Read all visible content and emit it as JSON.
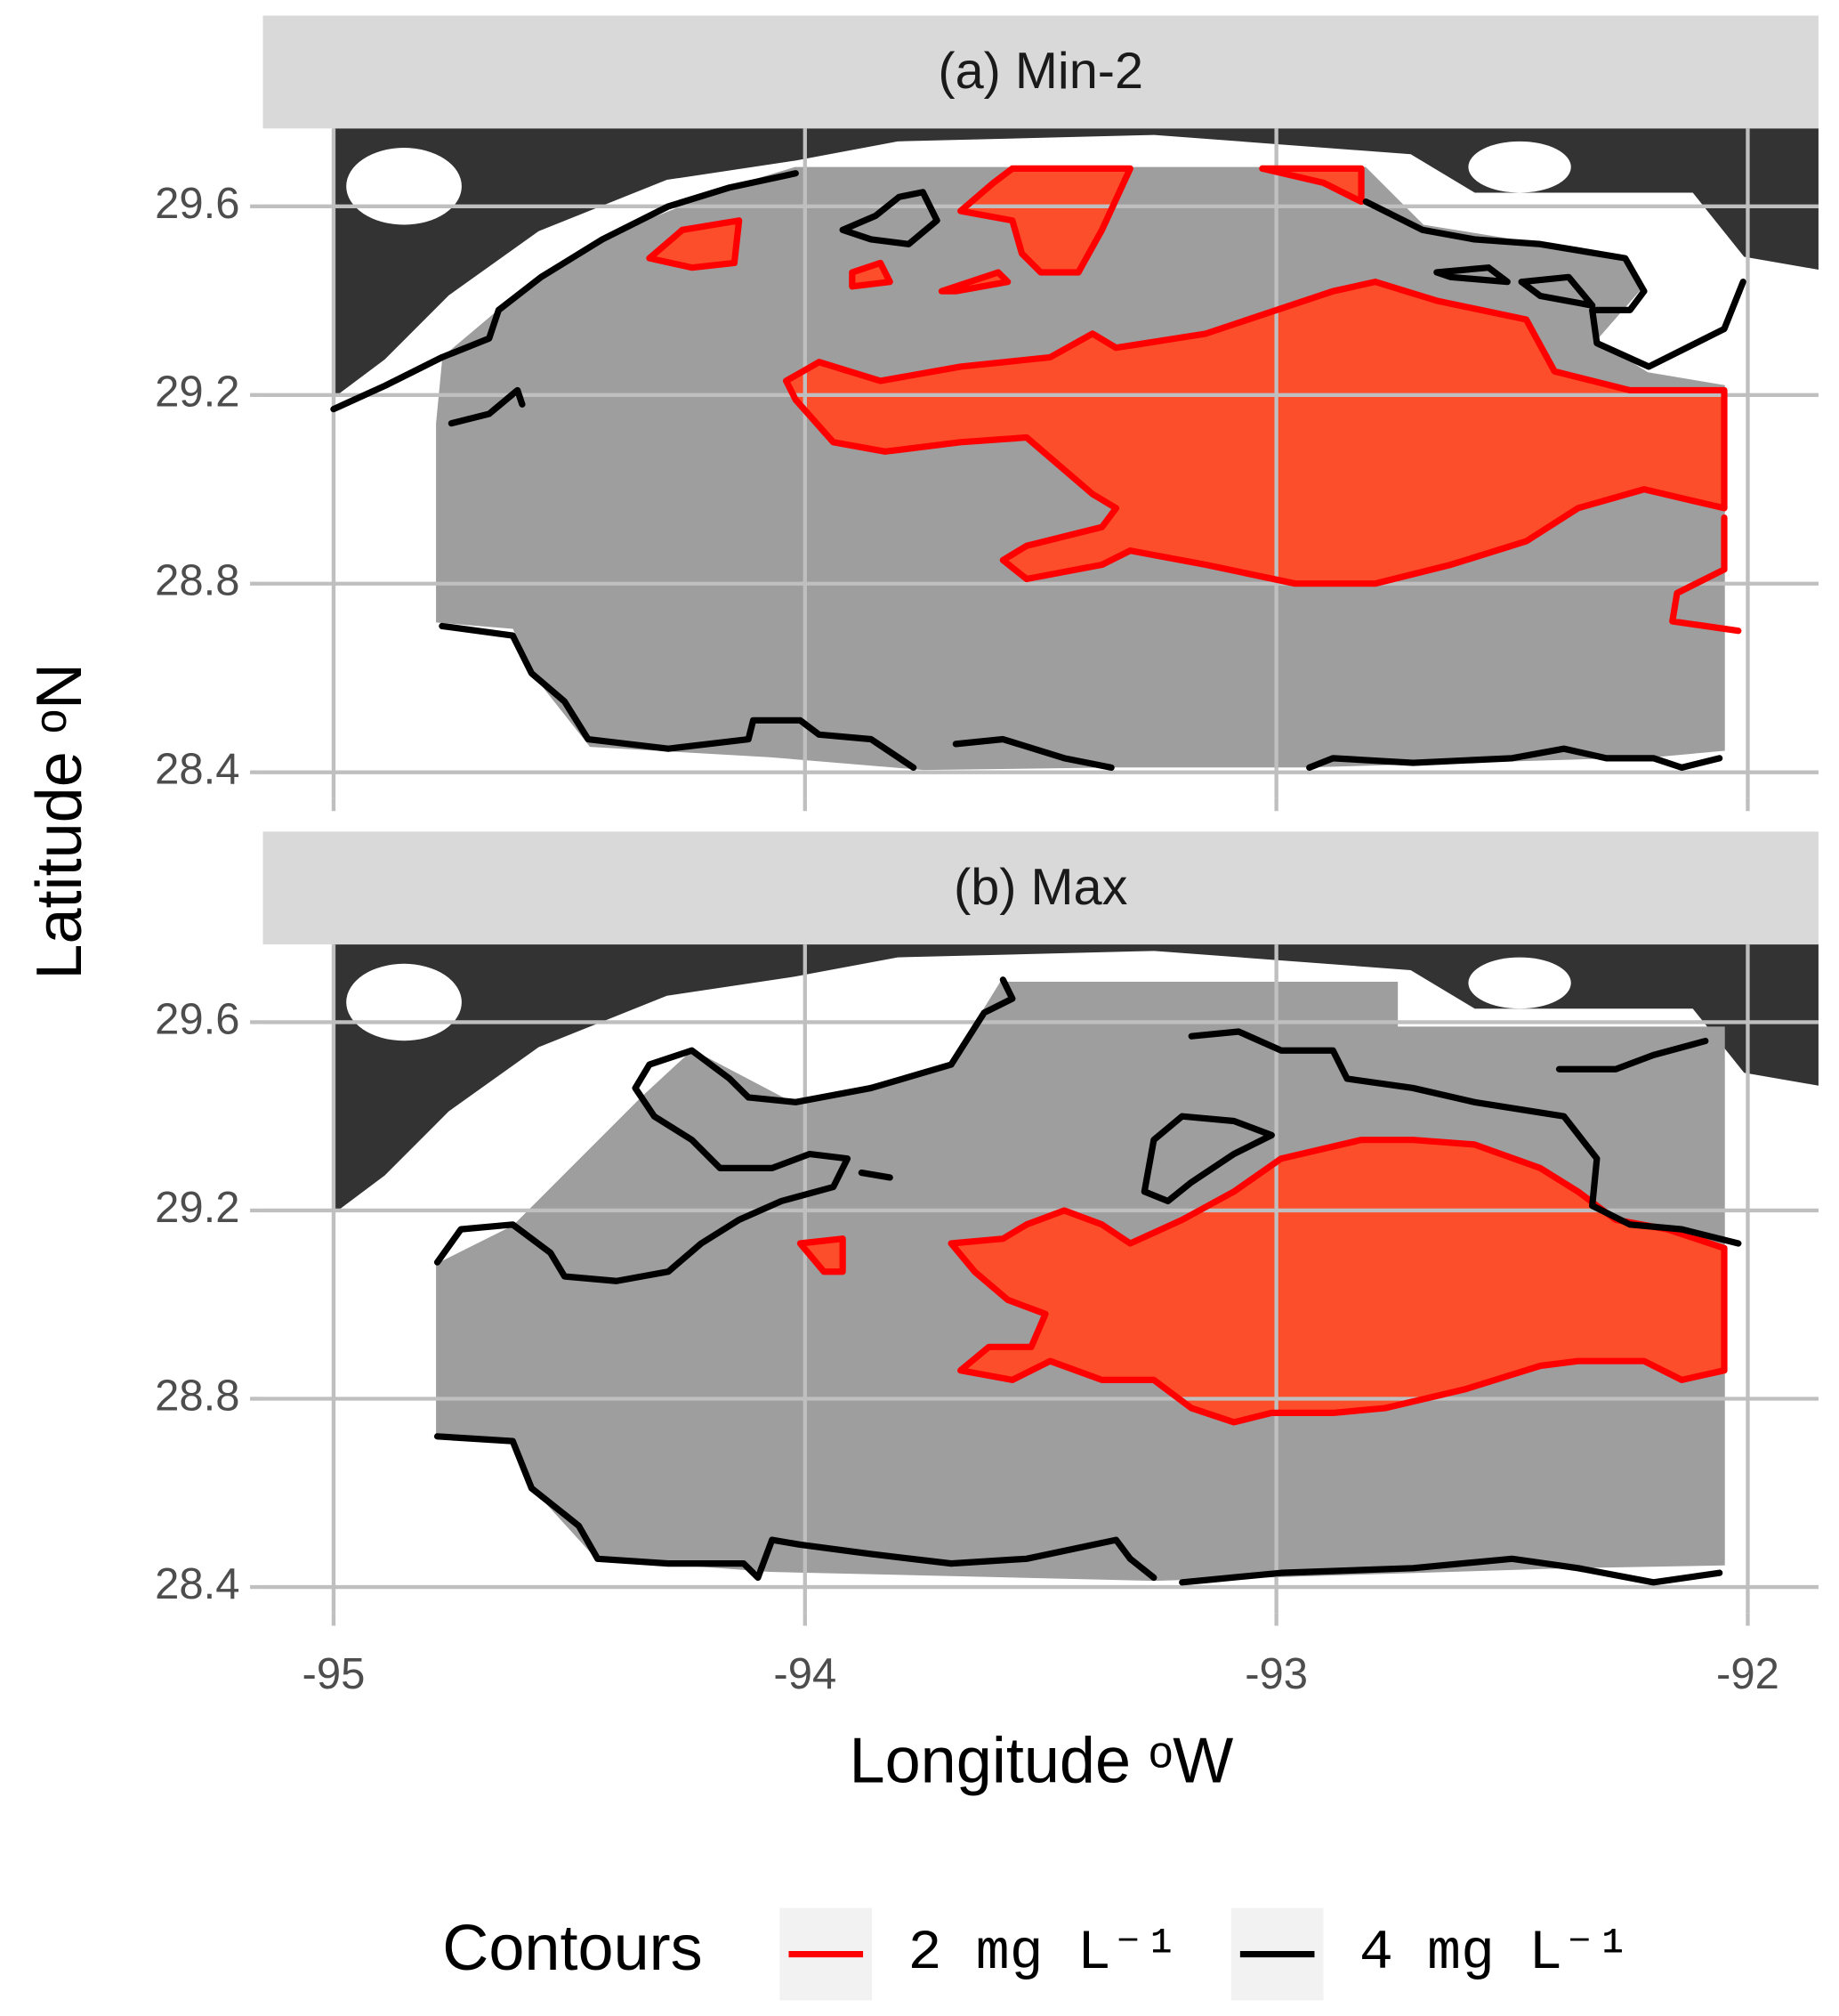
{
  "x_label": "Longitude ᵒW",
  "y_label": "Latitude ᵒN",
  "legend_title": "Contours",
  "chart_data": [
    {
      "type": "contour",
      "title": "(a) Min-2",
      "xlim": [
        -95.15,
        -91.85
      ],
      "ylim": [
        28.345,
        29.765
      ],
      "xticks": [
        -95,
        -94,
        -93,
        -92
      ],
      "yticks": [
        28.4,
        28.8,
        29.2,
        29.6
      ],
      "grid": true,
      "series": [
        {
          "name": "2 mg L⁻¹",
          "color": "#ff0000",
          "fill": "#fc4e2a",
          "x": [
            -94.04,
            -93.97,
            -93.84,
            -93.67,
            -93.48,
            -93.39,
            -93.34,
            -93.15,
            -92.88,
            -92.79,
            -92.66,
            -92.47,
            -92.41,
            -92.25,
            -92.05,
            -92.05,
            -92.22,
            -92.36,
            -92.47,
            -92.63,
            -92.79,
            -92.96,
            -93.15,
            -93.31,
            -93.37,
            -93.53,
            -93.58,
            -93.53,
            -93.37,
            -93.34,
            -93.39,
            -93.53,
            -93.67,
            -93.83,
            -93.94,
            -94.02,
            -94.04,
            null,
            -93.67,
            -93.6,
            -93.56,
            -93.31,
            -93.37,
            -93.42,
            -93.5,
            -93.54,
            -93.56,
            -93.67,
            null,
            -94.33,
            -94.26,
            -94.14,
            -94.15,
            -94.24,
            -94.33,
            null,
            -93.03,
            -92.82,
            -92.82,
            -92.9,
            -93.03,
            null,
            -93.71,
            -93.59,
            -93.57,
            -93.68,
            -93.71,
            null,
            -93.9,
            -93.84,
            -93.82,
            -93.9,
            -93.9,
            null,
            -92.05,
            -92.05,
            -92.15,
            -92.16,
            -92.02
          ],
          "y": [
            29.23,
            29.27,
            29.23,
            29.26,
            29.28,
            29.33,
            29.3,
            29.33,
            29.42,
            29.44,
            29.4,
            29.36,
            29.25,
            29.21,
            29.21,
            28.96,
            29.0,
            28.96,
            28.89,
            28.84,
            28.8,
            28.8,
            28.84,
            28.87,
            28.84,
            28.81,
            28.85,
            28.88,
            28.92,
            28.96,
            28.99,
            29.11,
            29.1,
            29.08,
            29.1,
            29.19,
            29.23,
            null,
            29.59,
            29.65,
            29.68,
            29.68,
            29.55,
            29.46,
            29.46,
            29.5,
            29.57,
            29.59,
            null,
            29.49,
            29.55,
            29.57,
            29.48,
            29.47,
            29.49,
            null,
            29.68,
            29.68,
            29.61,
            29.65,
            29.68,
            null,
            29.42,
            29.46,
            29.44,
            29.42,
            29.42,
            null,
            29.46,
            29.48,
            29.44,
            29.43,
            29.46,
            null,
            28.94,
            28.83,
            28.78,
            28.72,
            28.7
          ]
        },
        {
          "name": "4 mg L⁻¹",
          "color": "#000000",
          "x": [
            -95.0,
            -94.89,
            -94.77,
            -94.67,
            -94.65,
            -94.56,
            -94.43,
            -94.29,
            -94.16,
            -94.02,
            null,
            -94.75,
            -94.67,
            -94.61,
            -94.6,
            null,
            -93.92,
            -93.85,
            -93.8,
            -93.75,
            -93.72,
            -93.78,
            -93.86,
            -93.92,
            null,
            -92.81,
            -92.69,
            -92.58,
            -92.44,
            -92.26,
            -92.22,
            -92.25,
            -92.33,
            -92.32,
            -92.21,
            -92.05,
            -92.01,
            null,
            -92.66,
            -92.55,
            -92.51,
            -92.63,
            -92.66,
            null,
            -92.48,
            -92.38,
            -92.33,
            -92.44,
            -92.48,
            null,
            -94.77,
            -94.62,
            -94.58,
            -94.51,
            -94.46,
            -94.29,
            -94.12,
            -94.11,
            -94.01,
            -93.97,
            -93.86,
            -93.77,
            null,
            -93.68,
            -93.58,
            -93.45,
            -93.35,
            null,
            -92.93,
            -92.88,
            -92.71,
            -92.5,
            -92.39,
            -92.3,
            -92.2,
            -92.14,
            -92.06
          ],
          "y": [
            29.17,
            29.22,
            29.28,
            29.32,
            29.38,
            29.45,
            29.53,
            29.6,
            29.64,
            29.67,
            null,
            29.14,
            29.16,
            29.21,
            29.18,
            null,
            29.55,
            29.58,
            29.62,
            29.63,
            29.57,
            29.52,
            29.53,
            29.55,
            null,
            29.61,
            29.55,
            29.53,
            29.52,
            29.49,
            29.42,
            29.38,
            29.38,
            29.31,
            29.26,
            29.34,
            29.44,
            null,
            29.46,
            29.47,
            29.44,
            29.45,
            29.46,
            null,
            29.44,
            29.45,
            29.39,
            29.41,
            29.44,
            null,
            28.71,
            28.69,
            28.61,
            28.55,
            28.47,
            28.45,
            28.47,
            28.51,
            28.51,
            28.48,
            28.47,
            28.41,
            null,
            28.46,
            28.47,
            28.43,
            28.41,
            null,
            28.41,
            28.43,
            28.42,
            28.43,
            28.45,
            28.43,
            28.43,
            28.41,
            28.43
          ]
        }
      ]
    },
    {
      "type": "contour",
      "title": "(b) Max",
      "xlim": [
        -95.15,
        -91.85
      ],
      "ylim": [
        28.345,
        29.765
      ],
      "xticks": [
        -95,
        -94,
        -93,
        -92
      ],
      "yticks": [
        28.4,
        28.8,
        29.2,
        29.6
      ],
      "grid": true,
      "series": [
        {
          "color": "#ff0000",
          "fill": "#fc4e2a",
          "x": [
            -93.69,
            -93.58,
            -93.53,
            -93.45,
            -93.37,
            -93.31,
            -93.2,
            -93.09,
            -92.99,
            -92.82,
            -92.71,
            -92.58,
            -92.44,
            -92.36,
            -92.28,
            -92.17,
            -92.05,
            -92.05,
            -92.14,
            -92.22,
            -92.36,
            -92.44,
            -92.6,
            -92.77,
            -92.88,
            -93.01,
            -93.09,
            -93.18,
            -93.26,
            -93.37,
            -93.48,
            -93.56,
            -93.67,
            -93.61,
            -93.52,
            -93.49,
            -93.57,
            -93.64,
            -93.69,
            null,
            -94.01,
            -93.92,
            -93.92,
            -93.96,
            -94.01
          ],
          "y": [
            29.13,
            29.14,
            29.17,
            29.2,
            29.17,
            29.13,
            29.18,
            29.24,
            29.31,
            29.35,
            29.35,
            29.34,
            29.29,
            29.24,
            29.18,
            29.16,
            29.12,
            28.86,
            28.84,
            28.88,
            28.88,
            28.87,
            28.82,
            28.78,
            28.77,
            28.77,
            28.75,
            28.78,
            28.84,
            28.84,
            28.88,
            28.84,
            28.86,
            28.91,
            28.91,
            28.98,
            29.01,
            29.07,
            29.13,
            null,
            29.13,
            29.14,
            29.07,
            29.07,
            29.13
          ]
        },
        {
          "color": "#000000",
          "x": [
            -94.78,
            -94.73,
            -94.62,
            -94.54,
            -94.51,
            -94.4,
            -94.29,
            -94.22,
            -94.14,
            -94.05,
            -93.94,
            -93.91,
            -93.99,
            -94.07,
            -94.18,
            -94.24,
            -94.32,
            -94.36,
            -94.33,
            -94.24,
            -94.16,
            -94.12,
            -94.02,
            -93.86,
            -93.69,
            -93.62,
            -93.56,
            -93.58,
            null,
            -93.88,
            -93.82,
            null,
            -93.28,
            -93.26,
            -93.2,
            -93.09,
            -93.01,
            -93.09,
            -93.18,
            -93.23,
            -93.28,
            null,
            -93.18,
            -93.08,
            -92.99,
            -92.88,
            -92.85,
            -92.71,
            -92.58,
            -92.39,
            -92.32,
            -92.33,
            -92.25,
            -92.14,
            -92.02,
            null,
            -92.4,
            -92.28,
            -92.2,
            -92.09,
            null,
            -94.78,
            -94.62,
            -94.58,
            -94.48,
            -94.44,
            -94.29,
            -94.13,
            -94.1,
            -94.07,
            -94.01,
            -93.86,
            -93.69,
            -93.53,
            -93.34,
            -93.31,
            -93.26,
            null,
            -93.2,
            -92.99,
            -92.71,
            -92.5,
            -92.36,
            -92.2,
            -92.06
          ],
          "y": [
            29.09,
            29.16,
            29.17,
            29.11,
            29.06,
            29.05,
            29.07,
            29.13,
            29.18,
            29.22,
            29.25,
            29.31,
            29.32,
            29.29,
            29.29,
            29.35,
            29.4,
            29.46,
            29.51,
            29.54,
            29.48,
            29.44,
            29.43,
            29.46,
            29.51,
            29.62,
            29.65,
            29.69,
            null,
            29.28,
            29.27,
            null,
            29.24,
            29.35,
            29.4,
            29.39,
            29.36,
            29.32,
            29.26,
            29.22,
            29.24,
            null,
            29.57,
            29.58,
            29.54,
            29.54,
            29.48,
            29.46,
            29.43,
            29.4,
            29.31,
            29.21,
            29.17,
            29.16,
            29.13,
            null,
            29.5,
            29.5,
            29.53,
            29.56,
            null,
            28.72,
            28.71,
            28.61,
            28.53,
            28.46,
            28.45,
            28.45,
            28.42,
            28.5,
            28.49,
            28.47,
            28.45,
            28.46,
            28.5,
            28.46,
            28.42,
            null,
            28.41,
            28.43,
            28.44,
            28.46,
            28.44,
            28.41,
            28.43
          ]
        }
      ]
    }
  ]
}
